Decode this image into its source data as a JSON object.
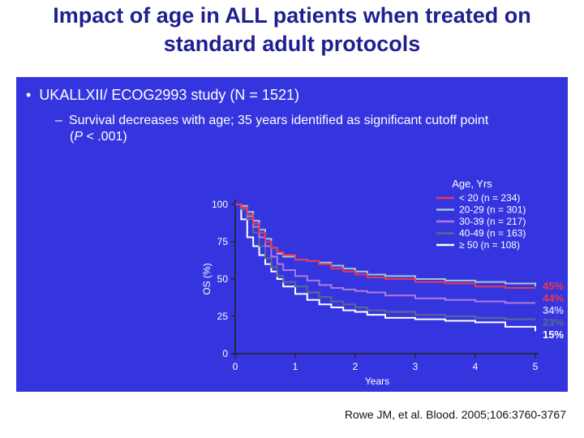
{
  "slide": {
    "title_line1": "Impact of age in ALL patients when treated on",
    "title_line2": "standard adult protocols",
    "bullet1": "UKALLXII/ ECOG2993 study (N = 1521)",
    "bullet2_line1": "Survival decreases with age; 35 years identified as significant cutoff  point",
    "bullet2_line2_prefix": "(",
    "bullet2_line2_italic": "P",
    "bullet2_line2_rest": " < .001)",
    "citation": "Rowe JM, et al. Blood. 2005;106:3760-3767"
  },
  "chart_data": {
    "type": "line",
    "title": "",
    "xlabel": "Years",
    "ylabel": "OS (%)",
    "xlim": [
      0,
      5
    ],
    "ylim": [
      0,
      100
    ],
    "xticks": [
      0,
      1,
      2,
      3,
      4,
      5
    ],
    "yticks": [
      0,
      25,
      50,
      75,
      100
    ],
    "grid": false,
    "legend_title": "Age, Yrs",
    "legend_position": "top-right",
    "series": [
      {
        "name": "< 20 (n = 234)",
        "color": "#e8384f",
        "end_label": "44%",
        "end_label_color": "#e8384f",
        "x": [
          0,
          0.1,
          0.2,
          0.3,
          0.4,
          0.5,
          0.6,
          0.7,
          0.8,
          1.0,
          1.2,
          1.4,
          1.6,
          1.8,
          2.0,
          2.2,
          2.5,
          3.0,
          3.5,
          4.0,
          4.5,
          5.0
        ],
        "y": [
          100,
          98,
          93,
          87,
          81,
          75,
          71,
          68,
          66,
          63,
          62,
          60,
          57,
          55,
          53,
          51,
          50,
          48,
          47,
          45,
          44,
          44
        ]
      },
      {
        "name": "20-29 (n = 301)",
        "color": "#a8c4cc",
        "end_label": "45%",
        "end_label_color": "#e8384f",
        "x": [
          0,
          0.1,
          0.2,
          0.3,
          0.4,
          0.5,
          0.6,
          0.7,
          0.8,
          1.0,
          1.2,
          1.4,
          1.6,
          1.8,
          2.0,
          2.2,
          2.5,
          3.0,
          3.5,
          4.0,
          4.5,
          5.0
        ],
        "y": [
          100,
          99,
          95,
          89,
          83,
          77,
          71,
          67,
          65,
          63,
          62,
          61,
          59,
          57,
          55,
          53,
          52,
          50,
          49,
          48,
          47,
          45
        ]
      },
      {
        "name": "30-39 (n = 217)",
        "color": "#b07ad8",
        "end_label": "34%",
        "end_label_color": "#c8c8ff",
        "x": [
          0,
          0.1,
          0.2,
          0.3,
          0.4,
          0.5,
          0.6,
          0.7,
          0.8,
          1.0,
          1.2,
          1.4,
          1.6,
          1.8,
          2.0,
          2.2,
          2.5,
          3.0,
          3.5,
          4.0,
          4.5,
          5.0
        ],
        "y": [
          100,
          98,
          92,
          85,
          78,
          72,
          65,
          60,
          56,
          52,
          49,
          46,
          44,
          43,
          42,
          41,
          39,
          37,
          36,
          35,
          34,
          34
        ]
      },
      {
        "name": "40-49 (n = 163)",
        "color": "#5a6a8a",
        "end_label": "23%",
        "end_label_color": "#5a6a8a",
        "x": [
          0,
          0.1,
          0.2,
          0.3,
          0.4,
          0.5,
          0.6,
          0.7,
          0.8,
          1.0,
          1.2,
          1.4,
          1.6,
          1.8,
          2.0,
          2.2,
          2.5,
          3.0,
          3.5,
          4.0,
          4.5,
          5.0
        ],
        "y": [
          100,
          97,
          90,
          81,
          72,
          64,
          58,
          52,
          48,
          45,
          41,
          38,
          35,
          33,
          31,
          29,
          28,
          26,
          25,
          24,
          23,
          23
        ]
      },
      {
        "name": "≥ 50 (n = 108)",
        "color": "#ffffff",
        "end_label": "15%",
        "end_label_color": "#ffffff",
        "x": [
          0,
          0.1,
          0.2,
          0.3,
          0.4,
          0.5,
          0.6,
          0.7,
          0.8,
          1.0,
          1.2,
          1.4,
          1.6,
          1.8,
          2.0,
          2.2,
          2.5,
          3.0,
          3.5,
          4.0,
          4.5,
          5.0
        ],
        "y": [
          100,
          90,
          78,
          72,
          66,
          60,
          55,
          50,
          45,
          40,
          36,
          33,
          31,
          29,
          28,
          26,
          24,
          23,
          22,
          21,
          18,
          15
        ]
      }
    ]
  }
}
